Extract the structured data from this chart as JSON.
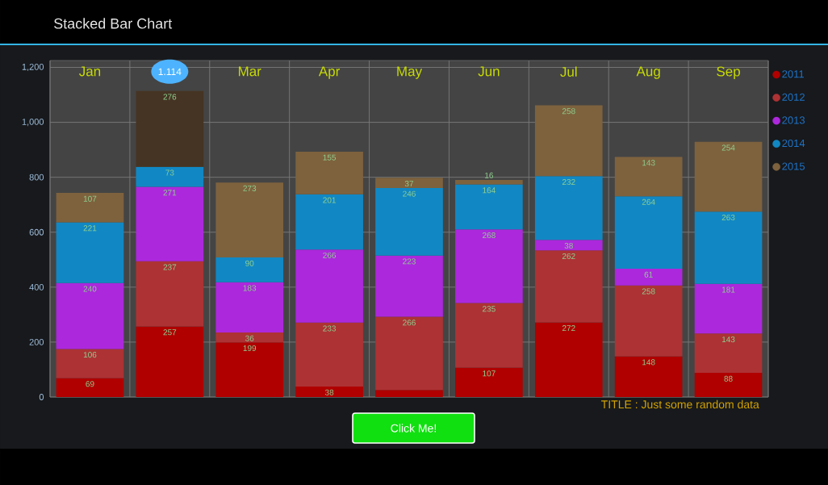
{
  "chart_data": {
    "type": "bar",
    "title": "Stacked Bar Chart",
    "stacked": true,
    "categories": [
      "Jan",
      null,
      "Mar",
      "Apr",
      "May",
      "Jun",
      "Jul",
      "Aug",
      "Sep"
    ],
    "series": [
      {
        "name": "2011",
        "color": "#b00000",
        "values": [
          69,
          257,
          199,
          38,
          26,
          107,
          272,
          148,
          88
        ],
        "value_labels": [
          "69",
          "257",
          "199",
          "38",
          null,
          "107",
          "272",
          "148",
          "88"
        ]
      },
      {
        "name": "2012",
        "color": "#ad3234",
        "values": [
          106,
          237,
          36,
          233,
          266,
          235,
          262,
          258,
          143
        ],
        "value_labels": [
          "106",
          "237",
          "36",
          "233",
          "266",
          "235",
          "262",
          "258",
          "143"
        ]
      },
      {
        "name": "2013",
        "color": "#ac28dc",
        "values": [
          240,
          271,
          183,
          266,
          223,
          268,
          38,
          61,
          181
        ],
        "value_labels": [
          "240",
          "271",
          "183",
          "266",
          "223",
          "268",
          "38",
          "61",
          "181"
        ]
      },
      {
        "name": "2014",
        "color": "#1188c4",
        "values": [
          221,
          73,
          90,
          201,
          246,
          164,
          232,
          264,
          263
        ],
        "value_labels": [
          "221",
          "73",
          "90",
          "201",
          "246",
          "164",
          "232",
          "264",
          "263"
        ]
      },
      {
        "name": "2015",
        "color": "#7e623e",
        "colors": [
          "#7e623e",
          "#453423",
          "#7e623e",
          "#7e623e",
          "#7e623e",
          "#7e623e",
          "#7e623e",
          "#7e623e",
          "#7e623e"
        ],
        "values": [
          107,
          276,
          273,
          155,
          37,
          16,
          258,
          143,
          254
        ],
        "value_labels": [
          "107",
          "276",
          "273",
          "155",
          "37",
          "16",
          "258",
          "143",
          "254"
        ]
      }
    ],
    "ylim": [
      0,
      1225
    ],
    "yticks": [
      0,
      200,
      400,
      600,
      800,
      {
        "value": 1000,
        "label": "1,000"
      },
      {
        "value": 1200,
        "label": "1,200"
      }
    ],
    "grid": true,
    "legend": "right",
    "annotations": [
      {
        "text": "1.114",
        "y": 1114
      },
      "TITLE : Just some random data",
      "Click Me!"
    ]
  }
}
